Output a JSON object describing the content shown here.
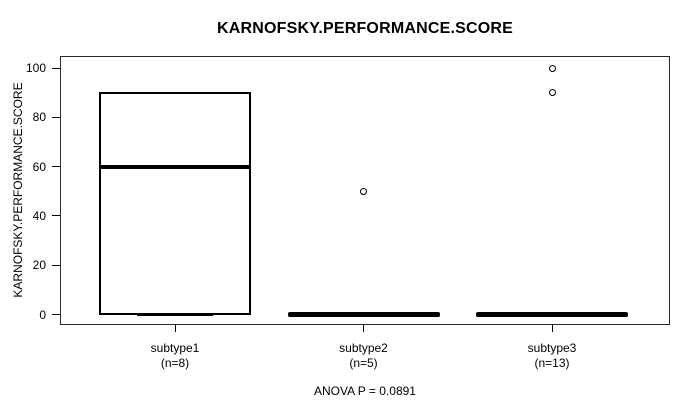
{
  "chart_data": {
    "type": "box",
    "title": "KARNOFSKY.PERFORMANCE.SCORE",
    "ylabel": "KARNOFSKY.PERFORMANCE.SCORE",
    "footer": "ANOVA P = 0.0891",
    "ylim": [
      0,
      100
    ],
    "yticks": [
      0,
      20,
      40,
      60,
      80,
      100
    ],
    "grid": false,
    "legend": "none",
    "groups": [
      {
        "label": "subtype1",
        "sublabel": "(n=8)",
        "n": 8,
        "whisker_low": 0,
        "q1": 0,
        "median": 60,
        "q3": 90,
        "whisker_high": 90,
        "outliers": []
      },
      {
        "label": "subtype2",
        "sublabel": "(n=5)",
        "n": 5,
        "whisker_low": 0,
        "q1": 0,
        "median": 0,
        "q3": 0,
        "whisker_high": 0,
        "outliers": [
          50
        ]
      },
      {
        "label": "subtype3",
        "sublabel": "(n=13)",
        "n": 13,
        "whisker_low": 0,
        "q1": 0,
        "median": 0,
        "q3": 0,
        "whisker_high": 0,
        "outliers": [
          100,
          90
        ]
      }
    ],
    "colors": {
      "box_stroke": "#000000",
      "median": "#000000",
      "outlier_stroke": "#000000",
      "frame": "#2b2b2b",
      "text": "#000000",
      "background": "#ffffff"
    }
  }
}
